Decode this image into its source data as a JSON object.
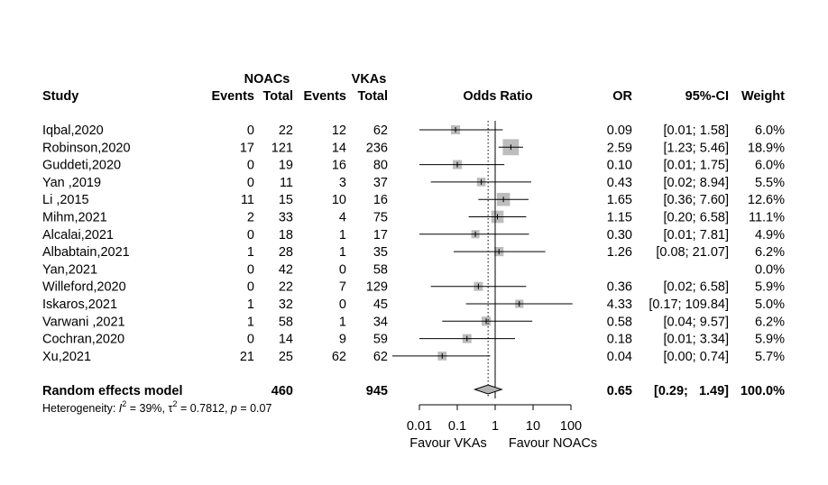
{
  "chart_data": {
    "type": "forest",
    "header": {
      "group1": "NOACs",
      "group2": "VKAs",
      "study": "Study",
      "events1": "Events",
      "total1": "Total",
      "events2": "Events",
      "total2": "Total",
      "plot_title": "Odds Ratio",
      "or": "OR",
      "ci": "95%-CI",
      "weight": "Weight"
    },
    "studies": [
      {
        "study": "Iqbal,2020",
        "e1": "0",
        "n1": "22",
        "e2": "12",
        "n2": "62",
        "or": 0.09,
        "lo": 0.01,
        "hi": 1.58,
        "or_text": "0.09",
        "ci_text": "[0.01;   1.58]",
        "w": 6.0,
        "weight_text": "6.0%"
      },
      {
        "study": "Robinson,2020",
        "e1": "17",
        "n1": "121",
        "e2": "14",
        "n2": "236",
        "or": 2.59,
        "lo": 1.23,
        "hi": 5.46,
        "or_text": "2.59",
        "ci_text": "[1.23;   5.46]",
        "w": 18.9,
        "weight_text": "18.9%"
      },
      {
        "study": "Guddeti,2020",
        "e1": "0",
        "n1": "19",
        "e2": "16",
        "n2": "80",
        "or": 0.1,
        "lo": 0.01,
        "hi": 1.75,
        "or_text": "0.10",
        "ci_text": "[0.01;   1.75]",
        "w": 6.0,
        "weight_text": "6.0%"
      },
      {
        "study": "Yan ,2019",
        "e1": "0",
        "n1": "11",
        "e2": "3",
        "n2": "37",
        "or": 0.43,
        "lo": 0.02,
        "hi": 8.94,
        "or_text": "0.43",
        "ci_text": "[0.02;   8.94]",
        "w": 5.5,
        "weight_text": "5.5%"
      },
      {
        "study": "Li ,2015",
        "e1": "11",
        "n1": "15",
        "e2": "10",
        "n2": "16",
        "or": 1.65,
        "lo": 0.36,
        "hi": 7.6,
        "or_text": "1.65",
        "ci_text": "[0.36;   7.60]",
        "w": 12.6,
        "weight_text": "12.6%"
      },
      {
        "study": "Mihm,2021",
        "e1": "2",
        "n1": "33",
        "e2": "4",
        "n2": "75",
        "or": 1.15,
        "lo": 0.2,
        "hi": 6.58,
        "or_text": "1.15",
        "ci_text": "[0.20;   6.58]",
        "w": 11.1,
        "weight_text": "11.1%"
      },
      {
        "study": "Alcalai,2021",
        "e1": "0",
        "n1": "18",
        "e2": "1",
        "n2": "17",
        "or": 0.3,
        "lo": 0.01,
        "hi": 7.81,
        "or_text": "0.30",
        "ci_text": "[0.01;   7.81]",
        "w": 4.9,
        "weight_text": "4.9%"
      },
      {
        "study": "Albabtain,2021",
        "e1": "1",
        "n1": "28",
        "e2": "1",
        "n2": "35",
        "or": 1.26,
        "lo": 0.08,
        "hi": 21.07,
        "or_text": "1.26",
        "ci_text": "[0.08;  21.07]",
        "w": 6.2,
        "weight_text": "6.2%"
      },
      {
        "study": "Yan,2021",
        "e1": "0",
        "n1": "42",
        "e2": "0",
        "n2": "58",
        "or": null,
        "lo": null,
        "hi": null,
        "or_text": "",
        "ci_text": "",
        "w": 0.0,
        "weight_text": "0.0%"
      },
      {
        "study": "Willeford,2020",
        "e1": "0",
        "n1": "22",
        "e2": "7",
        "n2": "129",
        "or": 0.36,
        "lo": 0.02,
        "hi": 6.58,
        "or_text": "0.36",
        "ci_text": "[0.02;   6.58]",
        "w": 5.9,
        "weight_text": "5.9%"
      },
      {
        "study": "Iskaros,2021",
        "e1": "1",
        "n1": "32",
        "e2": "0",
        "n2": "45",
        "or": 4.33,
        "lo": 0.17,
        "hi": 109.84,
        "or_text": "4.33",
        "ci_text": "[0.17; 109.84]",
        "w": 5.0,
        "weight_text": "5.0%"
      },
      {
        "study": " Varwani ,2021",
        "e1": "1",
        "n1": "58",
        "e2": "1",
        "n2": "34",
        "or": 0.58,
        "lo": 0.04,
        "hi": 9.57,
        "or_text": "0.58",
        "ci_text": "[0.04;   9.57]",
        "w": 6.2,
        "weight_text": "6.2%"
      },
      {
        "study": "Cochran,2020",
        "e1": "0",
        "n1": "14",
        "e2": "9",
        "n2": "59",
        "or": 0.18,
        "lo": 0.01,
        "hi": 3.34,
        "or_text": "0.18",
        "ci_text": "[0.01;   3.34]",
        "w": 5.9,
        "weight_text": "5.9%"
      },
      {
        "study": "Xu,2021",
        "e1": "21",
        "n1": "25",
        "e2": "62",
        "n2": "62",
        "or": 0.04,
        "lo": 0.0,
        "hi": 0.74,
        "or_text": "0.04",
        "ci_text": "[0.00;   0.74]",
        "w": 5.7,
        "weight_text": "5.7%"
      }
    ],
    "pooled": {
      "label": "Random effects model",
      "n1": "460",
      "n2": "945",
      "or": 0.65,
      "lo": 0.29,
      "hi": 1.49,
      "or_text": "0.65",
      "ci_text": "[0.29;   1.49]",
      "weight_text": "100.0%"
    },
    "heterogeneity": {
      "prefix": "Heterogeneity: ",
      "i2_symbol": "I",
      "i2_exp": "2",
      "i2_value": " = 39%, ",
      "tau2_symbol": "τ",
      "tau2_exp": "2",
      "tau2_value": " = 0.7812, ",
      "p_symbol": "p",
      "p_value": " = 0.07"
    },
    "x_axis": {
      "scale": "log",
      "ticks": [
        0.01,
        0.1,
        1,
        10,
        100
      ],
      "tick_labels": [
        "0.01",
        "0.1",
        "1",
        "10",
        "100"
      ]
    },
    "favour_left": "Favour VKAs",
    "favour_right": "Favour NOACs",
    "colors": {
      "square": "#bdbdbd",
      "diamond": "#b3b3b3",
      "line": "#000000"
    }
  }
}
